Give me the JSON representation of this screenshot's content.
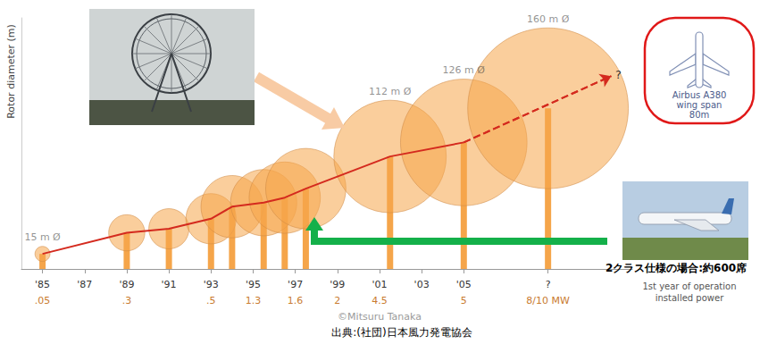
{
  "chart_data": {
    "type": "bubble",
    "y_label": "Rotor diameter (m)",
    "xlim": [
      1984,
      2013
    ],
    "xticks": [
      {
        "value": 1985,
        "label": "'85"
      },
      {
        "value": 1987,
        "label": "'87"
      },
      {
        "value": 1989,
        "label": "'89"
      },
      {
        "value": 1991,
        "label": "'91"
      },
      {
        "value": 1993,
        "label": "'93"
      },
      {
        "value": 1995,
        "label": "'95"
      },
      {
        "value": 1997,
        "label": "'97"
      },
      {
        "value": 1999,
        "label": "'99"
      },
      {
        "value": 2001,
        "label": "'01"
      },
      {
        "value": 2003,
        "label": "'03"
      },
      {
        "value": 2005,
        "label": "'05"
      },
      {
        "value": 2009,
        "label": "?"
      }
    ],
    "ylim": [
      0,
      250
    ],
    "tick_labels": "x",
    "grid": false,
    "data_labels": true,
    "circles": {
      "x": [
        1985,
        1989,
        1991,
        1993,
        1994,
        1995.5,
        1996.5,
        1997.5,
        2001.5,
        2005,
        2009
      ],
      "values": [
        15,
        36,
        40,
        50,
        62,
        66,
        71,
        80,
        112,
        126,
        160
      ],
      "value_labels": [
        "15 m Ø",
        null,
        null,
        null,
        null,
        null,
        null,
        null,
        "112 m Ø",
        "126 m Ø",
        "160 m Ø"
      ],
      "color": "#f5a54a"
    },
    "line": {
      "x": [
        1985,
        1989,
        1991,
        1993,
        1994,
        1995.5,
        1996.5,
        1997.5,
        2001.5,
        2005
      ],
      "values": [
        15,
        36,
        40,
        50,
        62,
        66,
        71,
        80,
        112,
        126
      ],
      "color": "#d42a1e",
      "line_style": "solid"
    },
    "projection": {
      "x": [
        2005,
        2012
      ],
      "values": [
        126,
        192
      ],
      "label": "?",
      "color": "#d42a1e",
      "line_style": "dashed"
    },
    "power": {
      "x": [
        1985,
        1989,
        1993,
        1995,
        1997,
        1999,
        2001,
        2005,
        2009
      ],
      "values": [
        0.05,
        0.3,
        0.5,
        1.3,
        1.6,
        2,
        4.5,
        5,
        null
      ],
      "value_labels": [
        ".05",
        ".3",
        ".5",
        "1.3",
        "1.6",
        "2",
        "4.5",
        "5",
        "8/10 MW"
      ],
      "color": "#c97b30"
    },
    "power_caption": [
      "1st year of operation",
      "installed power"
    ],
    "annotations": {
      "a380": [
        "Airbus A380",
        "wing span",
        "80m"
      ],
      "a380_seats": "2クラス仕様の場合:約600席",
      "credit": "©Mitsuru Tanaka",
      "source": "出典:(社団)日本風力発電協会"
    }
  }
}
